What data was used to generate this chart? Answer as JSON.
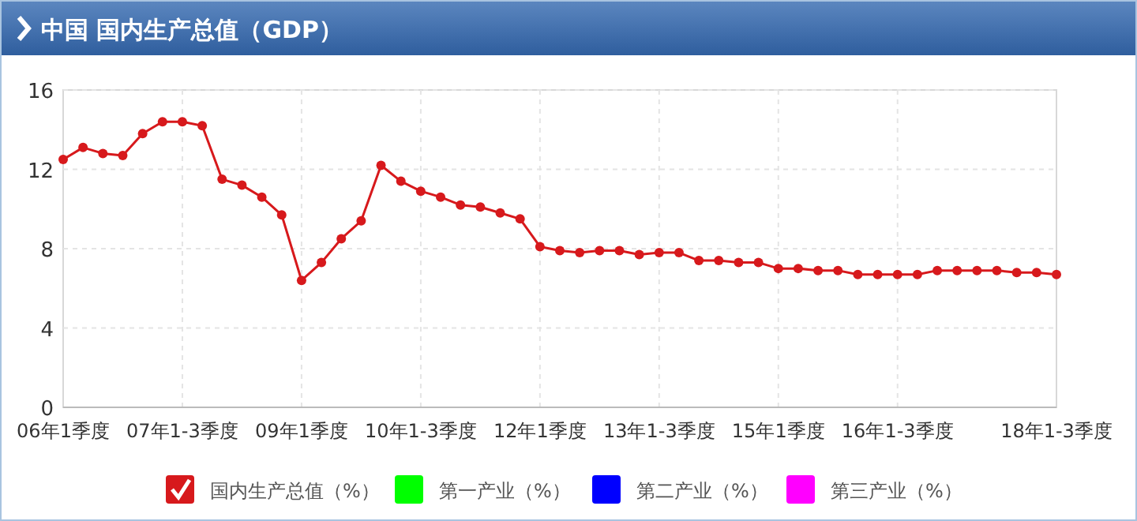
{
  "chart_data": {
    "type": "line",
    "title": "中国 国内生产总值（GDP）",
    "categories": [
      "06年1季度",
      null,
      null,
      null,
      null,
      null,
      "07年1-3季度",
      null,
      null,
      null,
      null,
      null,
      "09年1季度",
      null,
      null,
      null,
      null,
      null,
      "10年1-3季度",
      null,
      null,
      null,
      null,
      null,
      "12年1季度",
      null,
      null,
      null,
      null,
      null,
      "13年1-3季度",
      null,
      null,
      null,
      null,
      null,
      "15年1季度",
      null,
      null,
      null,
      null,
      null,
      "16年1-3季度",
      null,
      null,
      null,
      null,
      null,
      null,
      null,
      "18年1-3季度"
    ],
    "series": [
      {
        "name": "国内生产总值（%）",
        "color": "#d7191c",
        "values": [
          12.5,
          13.1,
          12.8,
          12.7,
          13.8,
          14.4,
          14.4,
          14.2,
          11.5,
          11.2,
          10.6,
          9.7,
          6.4,
          7.3,
          8.5,
          9.4,
          12.2,
          11.4,
          10.9,
          10.6,
          10.2,
          10.1,
          9.8,
          9.5,
          8.1,
          7.9,
          7.8,
          7.9,
          7.9,
          7.7,
          7.8,
          7.8,
          7.4,
          7.4,
          7.3,
          7.3,
          7.0,
          7.0,
          6.9,
          6.9,
          6.7,
          6.7,
          6.7,
          6.7,
          6.9,
          6.9,
          6.9,
          6.9,
          6.8,
          6.8,
          6.7
        ]
      },
      {
        "name": "第一产业（%）",
        "color": "#00ff00",
        "values": [
          null,
          null,
          null,
          null,
          null,
          null,
          null,
          null,
          null,
          null,
          null,
          null,
          null,
          null,
          null,
          null,
          null,
          null,
          null,
          null,
          null,
          null,
          null,
          null,
          null,
          null,
          null,
          null,
          null,
          null,
          null,
          null,
          null,
          null,
          null,
          null,
          null,
          null,
          null,
          null,
          null,
          null,
          null,
          null,
          null,
          null,
          null,
          null,
          null,
          null,
          null
        ]
      },
      {
        "name": "第二产业（%）",
        "color": "#0000ff",
        "values": [
          null,
          null,
          null,
          null,
          null,
          null,
          null,
          null,
          null,
          null,
          null,
          null,
          null,
          null,
          null,
          null,
          null,
          null,
          null,
          null,
          null,
          null,
          null,
          null,
          null,
          null,
          null,
          null,
          null,
          null,
          null,
          null,
          null,
          null,
          null,
          null,
          null,
          null,
          null,
          null,
          null,
          null,
          null,
          null,
          null,
          null,
          null,
          null,
          null,
          null,
          null
        ]
      },
      {
        "name": "第三产业（%）",
        "color": "#ff00ff",
        "values": [
          null,
          null,
          null,
          null,
          null,
          null,
          null,
          null,
          null,
          null,
          null,
          null,
          null,
          null,
          null,
          null,
          null,
          null,
          null,
          null,
          null,
          null,
          null,
          null,
          null,
          null,
          null,
          null,
          null,
          null,
          null,
          null,
          null,
          null,
          null,
          null,
          null,
          null,
          null,
          null,
          null,
          null,
          null,
          null,
          null,
          null,
          null,
          null,
          null,
          null,
          null
        ]
      }
    ],
    "ylim": [
      0,
      16
    ],
    "yticks": [
      0,
      4,
      8,
      12,
      16
    ],
    "grid": true,
    "legend": "bottom",
    "marker": "circle",
    "line_style": "solid"
  }
}
